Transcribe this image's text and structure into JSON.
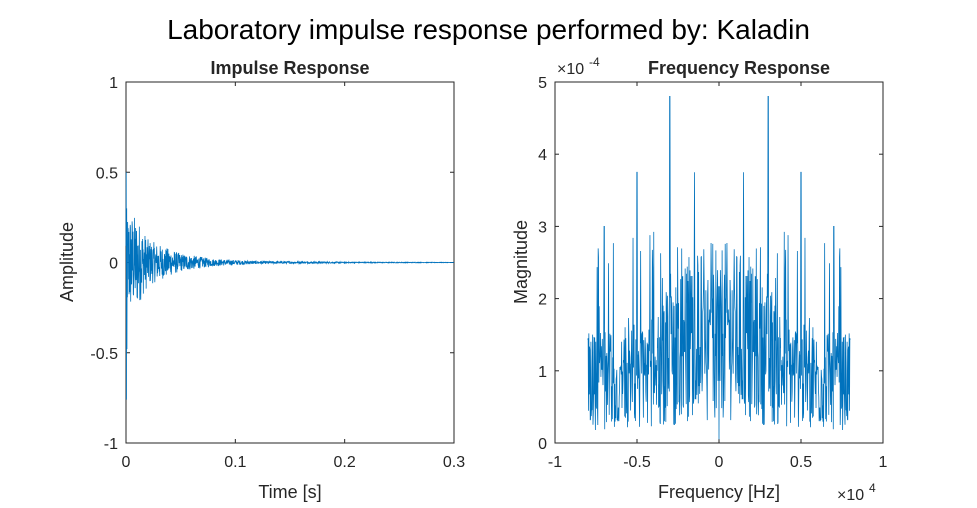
{
  "figure": {
    "suptitle": "Laboratory impulse response performed by: Kaladin"
  },
  "colors": {
    "line": "#0072BD",
    "axes": "#262626",
    "background": "#ffffff"
  },
  "chart_data": [
    {
      "type": "line",
      "title": "Impulse Response",
      "xlabel": "Time [s]",
      "ylabel": "Amplitude",
      "xlim": [
        0,
        0.3
      ],
      "ylim": [
        -1,
        1
      ],
      "xticks": [
        "0",
        "0.1",
        "0.2",
        "0.3"
      ],
      "yticks": [
        "-1",
        "-0.5",
        "0",
        "0.5",
        "1"
      ],
      "xtick_values": [
        0,
        0.1,
        0.2,
        0.3
      ],
      "ytick_values": [
        -1,
        -0.5,
        0,
        0.5,
        1
      ],
      "grid": false,
      "series": [
        {
          "signal": "decaying_noise",
          "peak_max": 0.5,
          "peak_min": -0.76,
          "envelope_points": [
            [
              0.0,
              0.3
            ],
            [
              0.01,
              0.25
            ],
            [
              0.02,
              0.13
            ],
            [
              0.03,
              0.1
            ],
            [
              0.05,
              0.05
            ],
            [
              0.08,
              0.02
            ],
            [
              0.12,
              0.008
            ],
            [
              0.2,
              0.003
            ],
            [
              0.3,
              0.001
            ]
          ]
        }
      ]
    },
    {
      "type": "line",
      "title": "Frequency Response",
      "xlabel": "Frequency [Hz]",
      "ylabel": "Magnitude",
      "xlim": [
        -1,
        1
      ],
      "ylim": [
        0,
        5
      ],
      "x_multiplier": "×10^4",
      "y_multiplier": "×10^-4",
      "xticks": [
        "-1",
        "-0.5",
        "0",
        "0.5",
        "1"
      ],
      "yticks": [
        "0",
        "1",
        "2",
        "3",
        "4",
        "5"
      ],
      "xtick_values": [
        -1,
        -0.5,
        0,
        0.5,
        1
      ],
      "ytick_values": [
        0,
        1,
        2,
        3,
        4,
        5
      ],
      "grid": false,
      "series": [
        {
          "signal": "symmetric_spectrum",
          "x_range": [
            -0.8,
            0.8
          ],
          "peaks": [
            [
              -0.3,
              4.8
            ],
            [
              0.3,
              4.8
            ],
            [
              -0.5,
              3.75
            ],
            [
              0.5,
              3.75
            ],
            [
              -0.15,
              3.75
            ],
            [
              0.15,
              3.75
            ],
            [
              -0.7,
              3.0
            ],
            [
              0.7,
              3.0
            ]
          ],
          "base_mean": 1.2
        }
      ]
    }
  ]
}
